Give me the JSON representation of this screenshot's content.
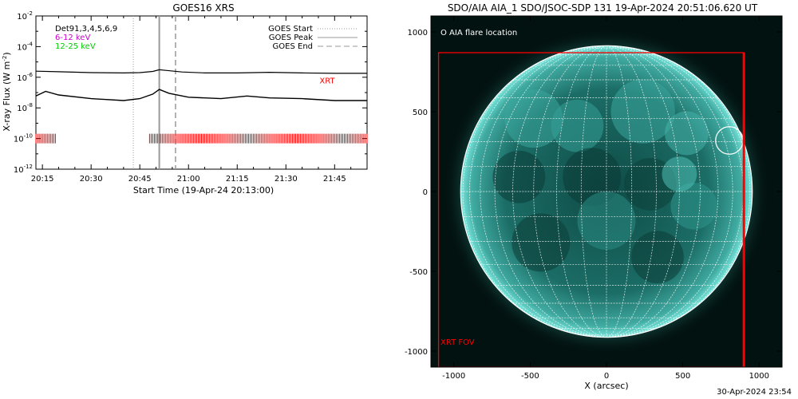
{
  "colors": {
    "xrt": "#ff0000",
    "low_band": "#cc00cc",
    "high_band": "#00cc00",
    "disk": "#1e6e68",
    "limb": "#6fe3d8",
    "sky": "#021210"
  },
  "footer": {
    "date": "30-Apr-2024 23:54"
  },
  "chart_data": [
    {
      "type": "line",
      "title": "GOES16 XRS",
      "xlabel": "Start Time (19-Apr-24 20:13:00)",
      "ylabel": "X-ray Flux (W m^-2)",
      "ylabel_main": "X-ray Flux (W m",
      "ylabel_exp": "-2",
      "ylabel_close": ")",
      "y_scale": "log",
      "ylim": [
        "1e-12",
        "1e-2"
      ],
      "y_ticks": [
        {
          "value": "1e-2",
          "base": "10",
          "exp": "-2"
        },
        {
          "value": "1e-4",
          "base": "10",
          "exp": "-4"
        },
        {
          "value": "1e-6",
          "base": "10",
          "exp": "-6"
        },
        {
          "value": "1e-8",
          "base": "10",
          "exp": "-8"
        },
        {
          "value": "1e-10",
          "base": "10",
          "exp": "-10"
        },
        {
          "value": "1e-12",
          "base": "10",
          "exp": "-12"
        }
      ],
      "xlim": [
        "20:13",
        "21:55"
      ],
      "x_ticks": [
        "20:15",
        "20:30",
        "20:45",
        "21:00",
        "21:15",
        "21:30",
        "21:45"
      ],
      "info_lines": [
        {
          "text": "Det91,3,4,5,6,9",
          "color": "#000000"
        },
        {
          "text": "6-12 keV",
          "color": "#cc00cc"
        },
        {
          "text": "12-25 keV",
          "color": "#00cc00"
        }
      ],
      "legend": [
        {
          "label": "GOES Start",
          "style": "dotted"
        },
        {
          "label": "GOES Peak",
          "style": "solid"
        },
        {
          "label": "GOES End",
          "style": "dashed"
        }
      ],
      "events": {
        "start": "20:43",
        "peak": "20:51",
        "end": "20:56"
      },
      "xrt_label": "XRT",
      "series": [
        {
          "channel": "long",
          "x": [
            "20:13",
            "20:20",
            "20:30",
            "20:40",
            "20:45",
            "20:49",
            "20:51",
            "20:53",
            "20:58",
            "21:05",
            "21:15",
            "21:25",
            "21:35",
            "21:45",
            "21:55"
          ],
          "y": [
            "2.5e-6",
            "2.3e-6",
            "2.0e-6",
            "1.9e-6",
            "2.0e-6",
            "2.4e-6",
            "3.1e-6",
            "2.8e-6",
            "2.2e-6",
            "1.9e-6",
            "1.9e-6",
            "2.1e-6",
            "1.9e-6",
            "1.8e-6",
            "1.8e-6"
          ]
        },
        {
          "channel": "short",
          "x": [
            "20:13",
            "20:16",
            "20:20",
            "20:30",
            "20:40",
            "20:45",
            "20:49",
            "20:51",
            "20:54",
            "21:00",
            "21:10",
            "21:18",
            "21:25",
            "21:35",
            "21:45",
            "21:55"
          ],
          "y": [
            "6e-8",
            "1.2e-7",
            "7e-8",
            "4e-8",
            "3e-8",
            "4e-8",
            "8e-8",
            "1.6e-7",
            "9e-8",
            "5e-8",
            "4e-8",
            "6e-8",
            "4.5e-8",
            "4e-8",
            "3e-8",
            "3e-8"
          ]
        }
      ],
      "xrt_observations": [
        {
          "start": "20:13",
          "end": "20:19"
        },
        {
          "start": "20:48",
          "end": "21:55"
        }
      ]
    },
    {
      "type": "map",
      "title": "SDO/AIA AIA_1 SDO/JSOC-SDP 131 19-Apr-2024 20:51:06.620 UT",
      "xlabel": "X (arcsec)",
      "xlim": [
        -1150,
        1150
      ],
      "ylim": [
        -1100,
        1100
      ],
      "x_ticks": [
        "-1000",
        "-500",
        "0",
        "500",
        "1000"
      ],
      "y_ticks": [
        "1000",
        "500",
        "0",
        "-500",
        "-1000"
      ],
      "solar_radius_arcsec": 955,
      "grid_spacing_deg": 10,
      "legend_text": "O AIA flare location",
      "flare_location": {
        "x": 805,
        "y": 320,
        "radius": 90
      },
      "xrt_fov": {
        "label": "XRT FOV",
        "x": [
          -1100,
          900
        ],
        "y": [
          -1100,
          870
        ]
      }
    }
  ]
}
